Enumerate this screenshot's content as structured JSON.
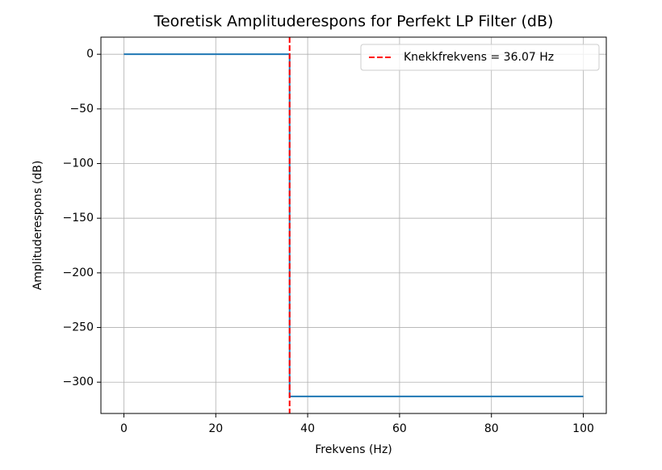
{
  "chart_data": {
    "type": "line",
    "title": "Teoretisk Amplituderespons for Perfekt LP Filter (dB)",
    "x_label": "Frekvens (Hz)",
    "y_label": "Amplituderespons (dB)",
    "x": [
      0,
      36.07,
      36.07,
      100
    ],
    "series": [
      {
        "color": "#1f77b4",
        "values": [
          0,
          0,
          -313,
          -313
        ]
      }
    ],
    "vline": {
      "x": 36.07,
      "name": "Knekkfrekvens = 36.07 Hz",
      "color": "#ff0000"
    },
    "xlim": [
      -5,
      105
    ],
    "xticks": [
      0,
      20,
      40,
      60,
      80,
      100
    ],
    "ylim": [
      -328.65,
      15.65
    ],
    "yticks": [
      0,
      {
        "value": -50,
        "label": "−50"
      },
      {
        "value": -100,
        "label": "−100"
      },
      {
        "value": -150,
        "label": "−150"
      },
      {
        "value": -200,
        "label": "−200"
      },
      {
        "value": -250,
        "label": "−250"
      },
      {
        "value": -300,
        "label": "−300"
      }
    ],
    "grid": true,
    "legend": "upper right"
  }
}
